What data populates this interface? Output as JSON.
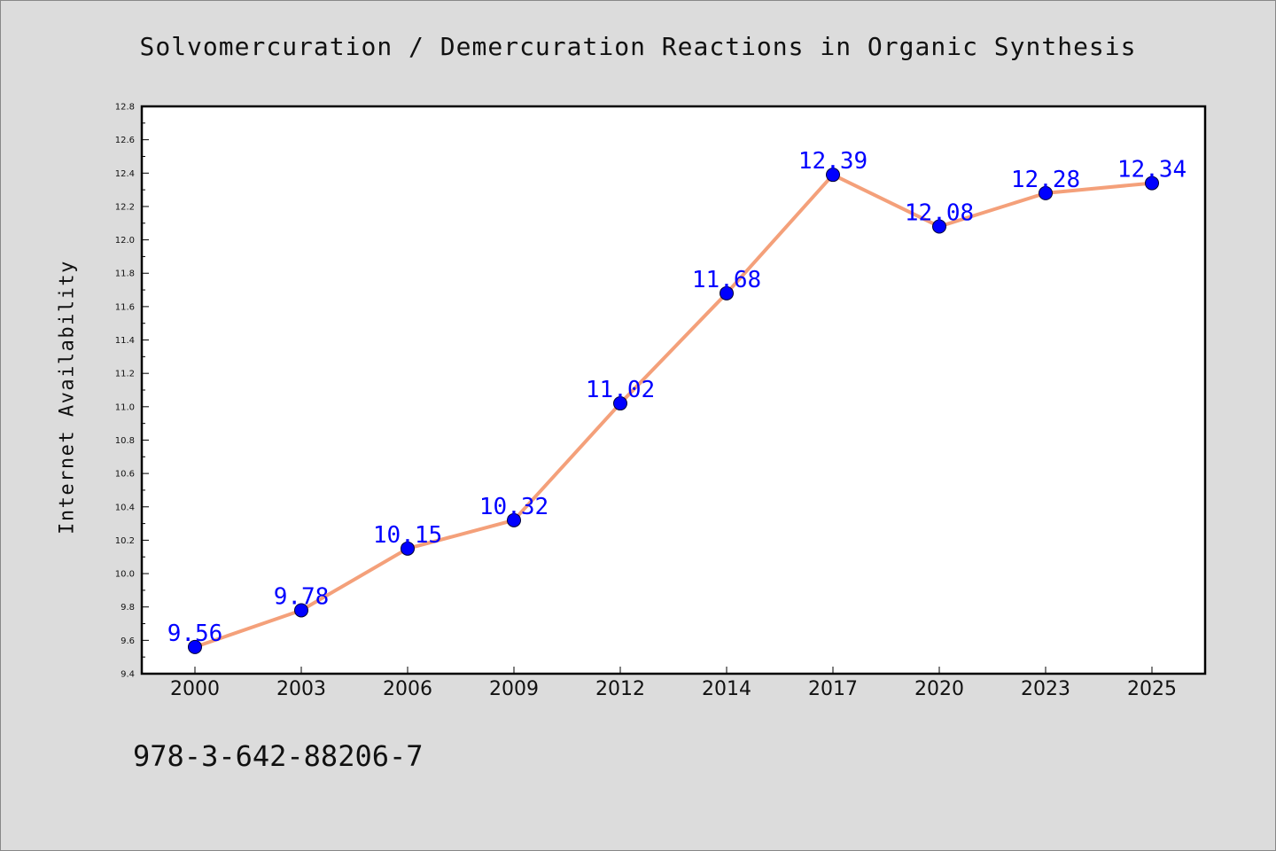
{
  "footer": {
    "code": "978-3-642-88206-7"
  },
  "colors": {
    "background": "#dcdcdc",
    "plot_background": "#ffffff",
    "line": "#f4a07a",
    "marker": "#0000ff",
    "data_label": "#0000ff"
  },
  "chart_data": {
    "type": "line",
    "title": "Solvomercuration / Demercuration Reactions in Organic Synthesis",
    "xlabel": "",
    "ylabel": "Internet Availability",
    "categories": [
      "2000",
      "2003",
      "2006",
      "2009",
      "2012",
      "2014",
      "2017",
      "2020",
      "2023",
      "2025"
    ],
    "series": [
      {
        "values": [
          9.56,
          9.78,
          10.15,
          10.32,
          11.02,
          11.68,
          12.39,
          12.08,
          12.28,
          12.34
        ],
        "labels": [
          "9.56",
          "9.78",
          "10.15",
          "10.32",
          "11.02",
          "11.68",
          "12.39",
          "12.08",
          "12.28",
          "12.34"
        ]
      }
    ],
    "ylim": [
      9.4,
      12.8
    ],
    "yticks": [
      "9.4",
      "9.6",
      "9.8",
      "10.0",
      "10.2",
      "10.4",
      "10.6",
      "10.8",
      "11.0",
      "11.2",
      "11.4",
      "11.6",
      "11.8",
      "12.0",
      "12.2",
      "12.4",
      "12.6",
      "12.8"
    ],
    "grid": false,
    "legend": "none"
  }
}
